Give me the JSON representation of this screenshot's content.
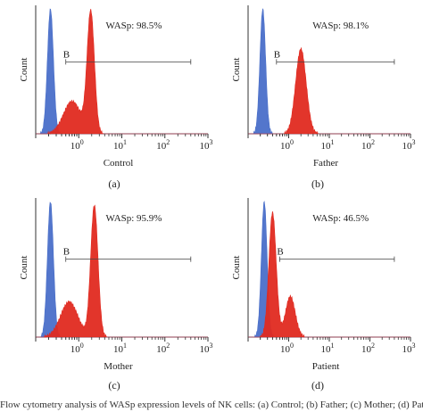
{
  "chart_data": [
    {
      "type": "histogram",
      "panel": "(a)",
      "xlabel": "Control",
      "ylabel": "Count",
      "xscale": "log",
      "xlim": [
        0.1,
        1000
      ],
      "x_ticks": [
        "10^0",
        "10^1",
        "10^2",
        "10^3"
      ],
      "annotation": "WASp: 98.5%",
      "gate": {
        "label": "B",
        "x_start": 0.5,
        "x_end": 400
      },
      "series": [
        {
          "color": "#4a6fc9",
          "peak_x": 0.22,
          "relative_peak": 1.0
        },
        {
          "color": "#e02a20",
          "peak_x": 1.9,
          "relative_peak": 0.97,
          "shoulder_x": 0.7
        }
      ]
    },
    {
      "type": "histogram",
      "panel": "(b)",
      "xlabel": "Father",
      "ylabel": "Count",
      "xscale": "log",
      "xlim": [
        0.1,
        1000
      ],
      "x_ticks": [
        "10^0",
        "10^1",
        "10^2",
        "10^3"
      ],
      "annotation": "WASp: 98.1%",
      "gate": {
        "label": "B",
        "x_start": 0.5,
        "x_end": 400
      },
      "series": [
        {
          "color": "#4a6fc9",
          "peak_x": 0.23,
          "relative_peak": 1.0
        },
        {
          "color": "#e02a20",
          "peak_x": 2.0,
          "relative_peak": 0.68
        }
      ]
    },
    {
      "type": "histogram",
      "panel": "(c)",
      "xlabel": "Mother",
      "ylabel": "Count",
      "xscale": "log",
      "xlim": [
        0.1,
        1000
      ],
      "x_ticks": [
        "10^0",
        "10^1",
        "10^2",
        "10^3"
      ],
      "annotation": "WASp: 95.9%",
      "gate": {
        "label": "B",
        "x_start": 0.5,
        "x_end": 400
      },
      "series": [
        {
          "color": "#4a6fc9",
          "peak_x": 0.22,
          "relative_peak": 1.0
        },
        {
          "color": "#e02a20",
          "peak_x": 2.3,
          "relative_peak": 0.97,
          "shoulder_x": 0.6
        }
      ]
    },
    {
      "type": "histogram",
      "panel": "(d)",
      "xlabel": "Patient",
      "ylabel": "Count",
      "xscale": "log",
      "xlim": [
        0.1,
        1000
      ],
      "x_ticks": [
        "10^0",
        "10^1",
        "10^2",
        "10^3"
      ],
      "annotation": "WASp: 46.5%",
      "gate": {
        "label": "B",
        "x_start": 0.6,
        "x_end": 400
      },
      "series": [
        {
          "color": "#4a6fc9",
          "peak_x": 0.25,
          "relative_peak": 1.0
        },
        {
          "color": "#e02a20",
          "peak_x": 0.4,
          "relative_peak": 0.92,
          "second_peak_x": 1.1
        }
      ]
    }
  ],
  "caption": "Flow cytometry analysis of WASp expression levels of NK cells: (a) Control; (b) Father; (c) Mother; (d) Patient."
}
